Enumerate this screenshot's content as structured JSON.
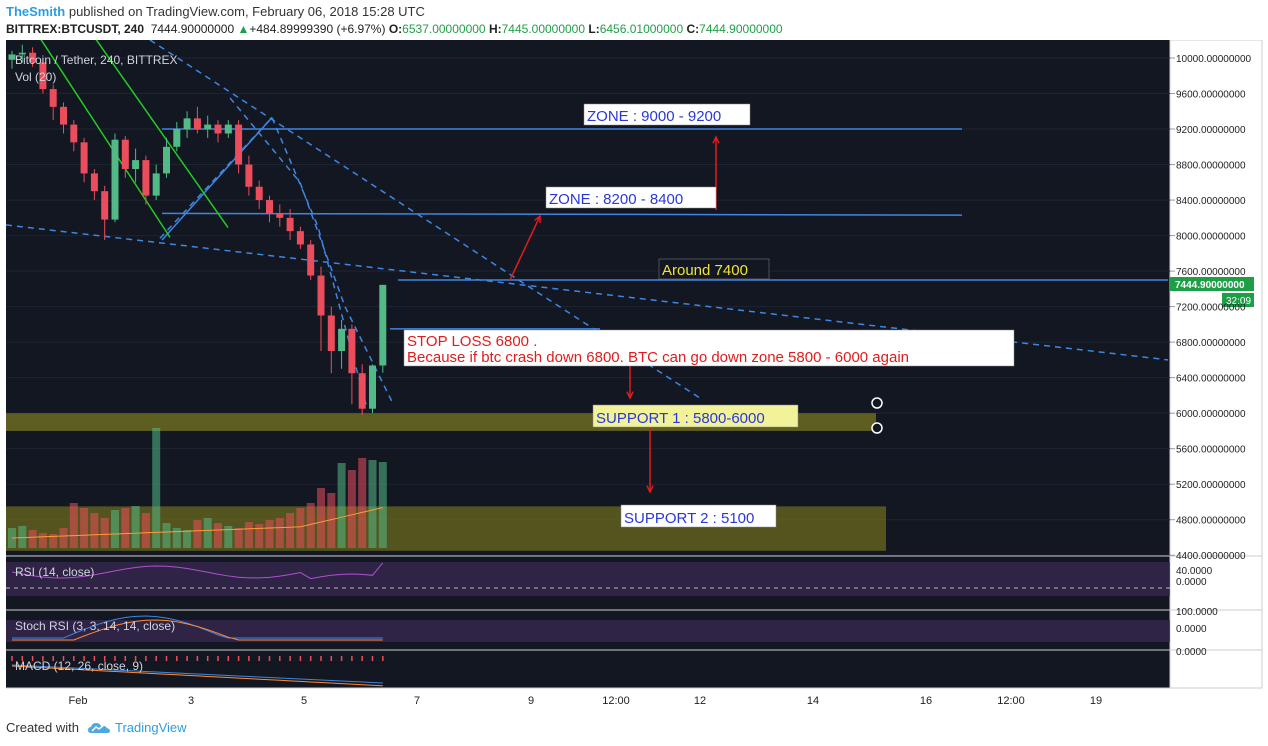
{
  "header": {
    "author": "TheSmith",
    "published": " published on TradingView.com, February 06, 2018 15:28 UTC",
    "symbol": "BITTREX:BTCUSDT, 240",
    "last": "7444.90000000",
    "change": "+484.89999390 (+6.97%)",
    "o_label": "O:",
    "o_val": "6537.00000000",
    "h_label": "H:",
    "h_val": "7445.00000000",
    "l_label": "L:",
    "l_val": "6456.01000000",
    "c_label": "C:",
    "c_val": "7444.90000000"
  },
  "footer": {
    "created_with": "Created with",
    "brand": "TradingView"
  },
  "colors": {
    "background": "#131722",
    "bull": "#53b987",
    "bear": "#eb4d5c",
    "trendline": "#3f86e0",
    "channel": "#22cc22",
    "zone_fill": "#6b6b1e",
    "arrow": "#e01c1c",
    "price_label": "#1f9e48"
  },
  "chart_data": {
    "type": "candlestick",
    "title": "Bitcoin / Tether, 240, BITTREX",
    "volume_label": "Vol (20)",
    "y_ticks": [
      "10000.00000000",
      "9600.00000000",
      "9200.00000000",
      "8800.00000000",
      "8400.00000000",
      "8000.00000000",
      "7600.00000000",
      "7200.00000000",
      "6800.00000000",
      "6400.00000000",
      "6000.00000000",
      "5600.00000000",
      "5200.00000000",
      "4800.00000000",
      "4400.00000000"
    ],
    "ylim": [
      4380,
      10000
    ],
    "x_ticks": [
      "Feb",
      "3",
      "5",
      "7",
      "9",
      "12:00",
      "12",
      "14",
      "16",
      "12:00",
      "19"
    ],
    "last_price_label": "7444.90000000",
    "countdown_label": "32:09",
    "candles": [
      [
        9980,
        10080,
        9880,
        10040
      ],
      [
        10040,
        10150,
        9950,
        10060
      ],
      [
        10060,
        10120,
        9900,
        9950
      ],
      [
        9950,
        10000,
        9600,
        9650
      ],
      [
        9650,
        9700,
        9300,
        9450
      ],
      [
        9450,
        9500,
        9150,
        9250
      ],
      [
        9250,
        9300,
        8950,
        9050
      ],
      [
        9050,
        9100,
        8600,
        8700
      ],
      [
        8700,
        8750,
        8400,
        8500
      ],
      [
        8500,
        8560,
        7950,
        8180
      ],
      [
        8180,
        9150,
        8150,
        9080
      ],
      [
        9080,
        9120,
        8650,
        8750
      ],
      [
        8750,
        8980,
        8600,
        8850
      ],
      [
        8850,
        8900,
        8350,
        8450
      ],
      [
        8450,
        8800,
        8400,
        8700
      ],
      [
        8700,
        9100,
        8650,
        9000
      ],
      [
        9000,
        9280,
        8950,
        9200
      ],
      [
        9200,
        9400,
        9100,
        9320
      ],
      [
        9320,
        9450,
        9150,
        9200
      ],
      [
        9200,
        9350,
        9100,
        9250
      ],
      [
        9250,
        9300,
        9050,
        9150
      ],
      [
        9150,
        9300,
        9100,
        9250
      ],
      [
        9250,
        9300,
        8700,
        8800
      ],
      [
        8800,
        8900,
        8450,
        8550
      ],
      [
        8550,
        8620,
        8300,
        8400
      ],
      [
        8400,
        8450,
        8150,
        8250
      ],
      [
        8250,
        8350,
        8100,
        8200
      ],
      [
        8200,
        8300,
        7950,
        8050
      ],
      [
        8050,
        8100,
        7850,
        7900
      ],
      [
        7900,
        7950,
        7500,
        7550
      ],
      [
        7550,
        7650,
        6700,
        7100
      ],
      [
        7100,
        7200,
        6450,
        6700
      ],
      [
        6700,
        7050,
        6500,
        6950
      ],
      [
        6950,
        7000,
        6100,
        6450
      ],
      [
        6450,
        6550,
        5980,
        6050
      ],
      [
        6050,
        6550,
        6000,
        6537
      ],
      [
        6537,
        7445,
        6456,
        7444.9
      ]
    ],
    "indicators": [
      {
        "name": "RSI (14, close)",
        "ticks": [
          "40.0000",
          "0.0000"
        ]
      },
      {
        "name": "Stoch RSI (3, 3, 14, 14, close)",
        "ticks": [
          "100.0000",
          "0.0000"
        ]
      },
      {
        "name": "MACD (12, 26, close, 9)",
        "ticks": [
          "0.0000"
        ]
      }
    ],
    "annotations": [
      {
        "key": "zone1",
        "text": "ZONE : 9000 - 9200",
        "price": 9200
      },
      {
        "key": "zone2",
        "text": "ZONE : 8200 - 8400",
        "price": 8250
      },
      {
        "key": "around",
        "text": "Around 7400",
        "price": 7500
      },
      {
        "key": "stop",
        "line1": "STOP LOSS  6800 .",
        "line2": "Because if btc crash down 6800. BTC can go down zone 5800 - 6000 again",
        "price": 6950
      },
      {
        "key": "support1",
        "text": "SUPPORT 1 : 5800-6000",
        "range": [
          5800,
          6000
        ]
      },
      {
        "key": "support2",
        "text": "SUPPORT 2 : 5100",
        "range": [
          4450,
          4950
        ]
      }
    ]
  }
}
